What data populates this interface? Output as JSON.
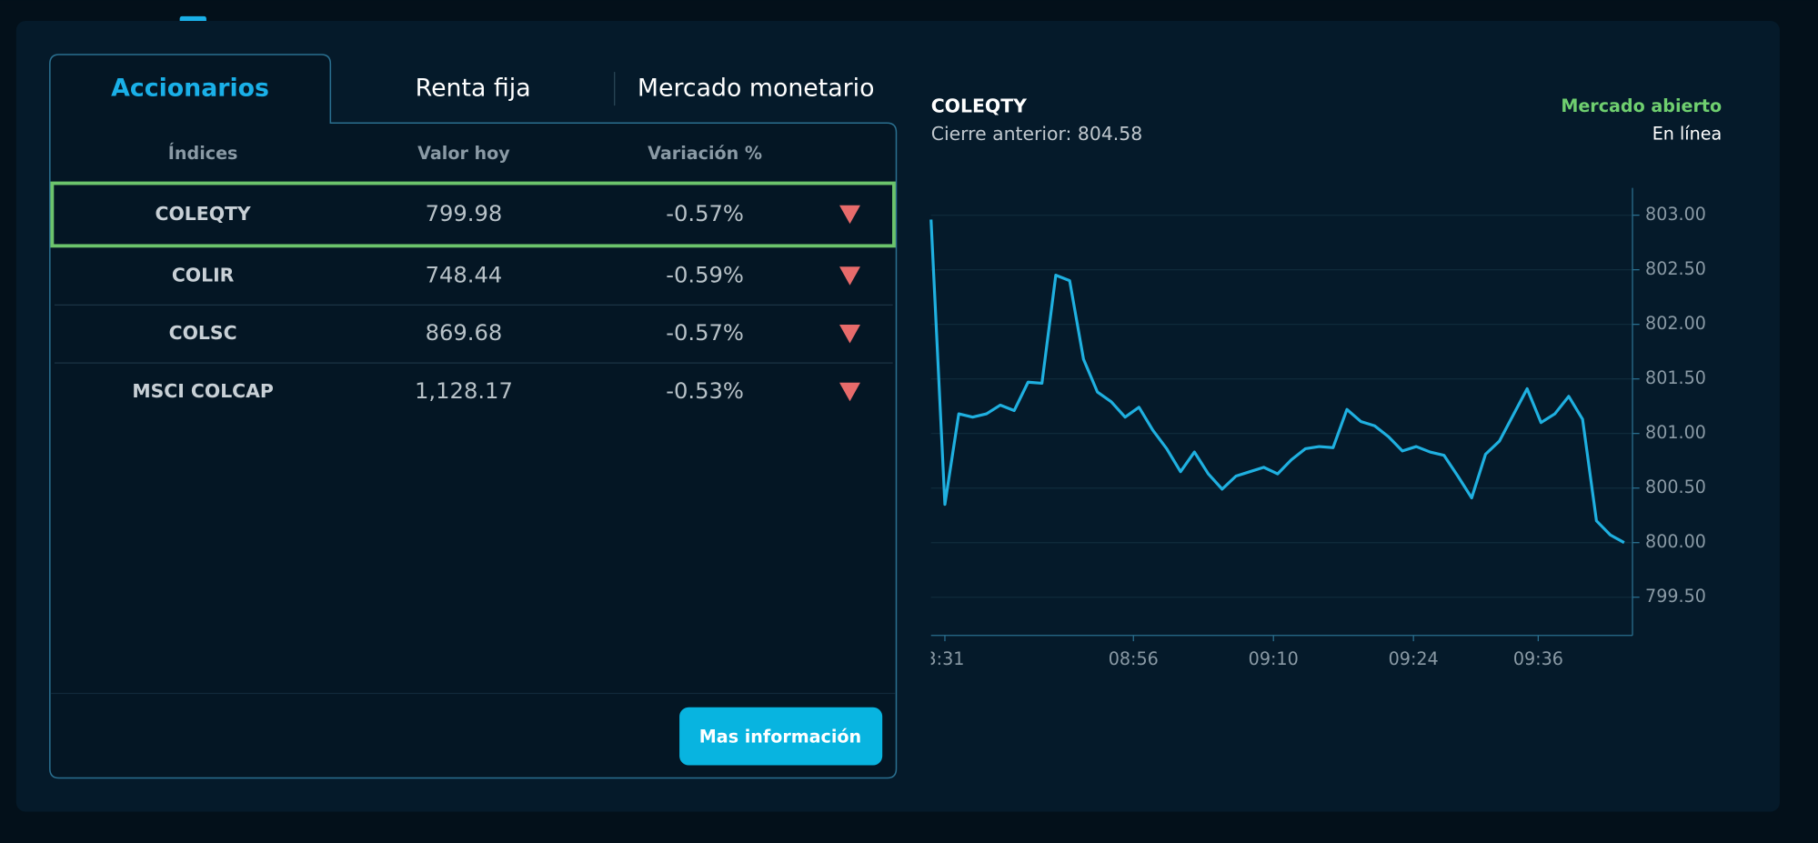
{
  "tabs": [
    "Accionarios",
    "Renta fija",
    "Mercado monetario"
  ],
  "table": {
    "headers": [
      "Índices",
      "Valor hoy",
      "Variación %"
    ],
    "rows": [
      [
        "COLEQTY",
        "799.98",
        "-0.57%"
      ],
      [
        "COLIR",
        "748.44",
        "-0.59%"
      ],
      [
        "COLSC",
        "869.68",
        "-0.57%"
      ],
      [
        "MSCI COLCAP",
        "1,128.17",
        "-0.53%"
      ]
    ]
  },
  "button": "Mas información",
  "chart_data": {
    "type": "line",
    "title": "COLEQTY",
    "subtitle": "Cierre anterior: 804.58",
    "status": "Mercado abierto",
    "status_detail": "En línea",
    "series": [
      {
        "color": "#1fb0e0",
        "values": [
          802.96,
          800.35,
          801.18,
          801.15,
          801.18,
          801.26,
          801.21,
          801.47,
          801.46,
          802.45,
          802.4,
          801.68,
          801.38,
          801.29,
          801.15,
          801.24,
          801.03,
          800.86,
          800.65,
          800.83,
          800.63,
          800.49,
          800.61,
          800.65,
          800.69,
          800.63,
          800.76,
          800.86,
          800.88,
          800.87,
          801.22,
          801.11,
          801.07,
          800.97,
          800.84,
          800.88,
          800.83,
          800.8,
          800.61,
          800.41,
          800.81,
          800.93,
          801.17,
          801.41,
          801.1,
          801.18,
          801.34,
          801.13,
          800.2,
          800.07,
          800.0
        ]
      }
    ],
    "xlim": [
      0,
      50.6
    ],
    "xticks": [
      {
        "value": 1,
        "label": "3:31"
      },
      {
        "value": 14.6,
        "label": "08:56"
      },
      {
        "value": 24.7,
        "label": "09:10"
      },
      {
        "value": 34.8,
        "label": "09:24"
      },
      {
        "value": 43.8,
        "label": "09:36"
      }
    ],
    "ylim": [
      799.15,
      803.25
    ],
    "yticks": [
      {
        "value": 799.5,
        "label": "799.50"
      },
      {
        "value": 800,
        "label": "800.00"
      },
      {
        "value": 800.5,
        "label": "800.50"
      },
      {
        "value": 801,
        "label": "801.00"
      },
      {
        "value": 801.5,
        "label": "801.50"
      },
      {
        "value": 802,
        "label": "802.00"
      },
      {
        "value": 802.5,
        "label": "802.50"
      },
      {
        "value": 803,
        "label": "803.00"
      }
    ],
    "grid": true
  }
}
